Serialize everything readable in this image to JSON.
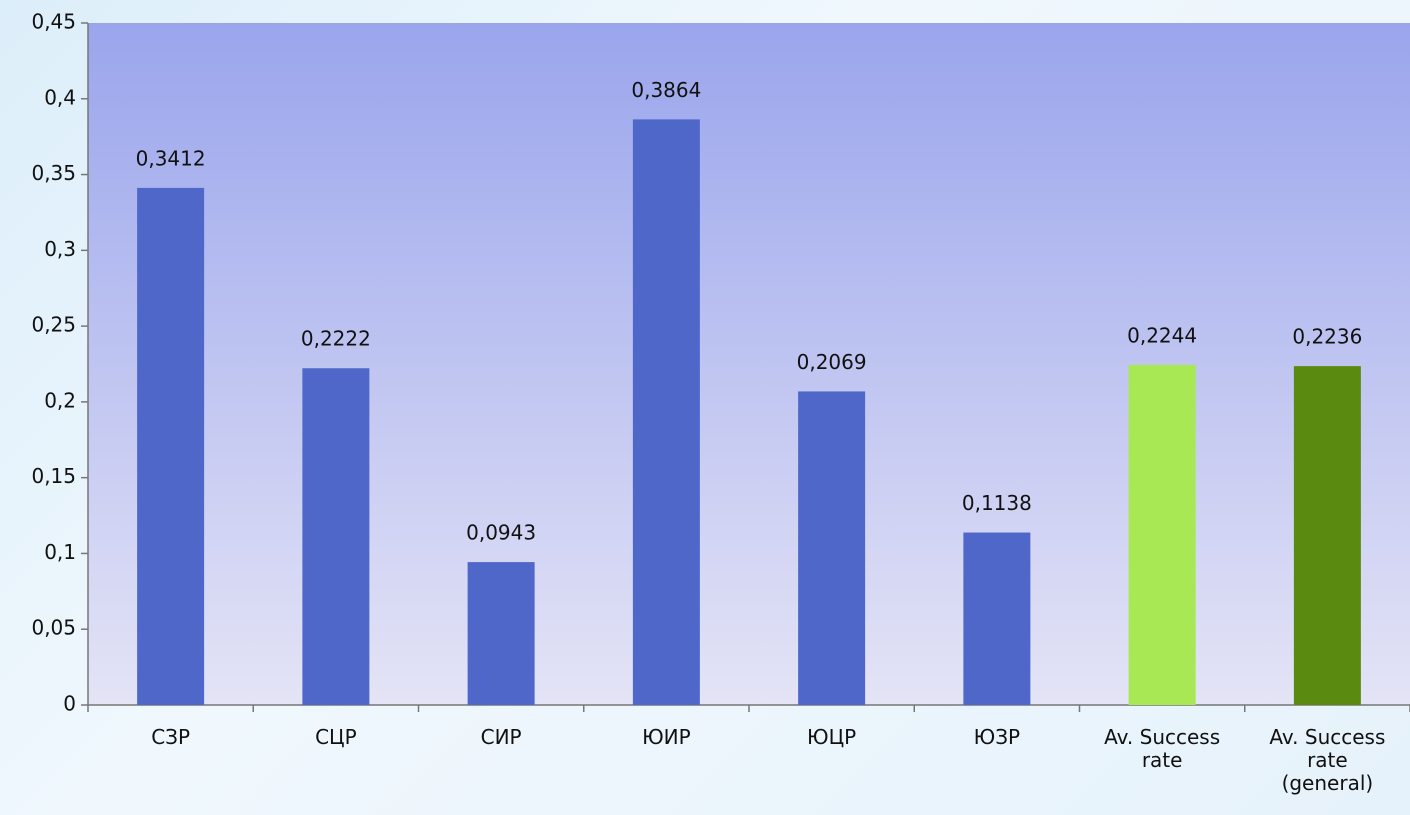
{
  "chart_data": {
    "type": "bar",
    "categories": [
      "СЗР",
      "СЦР",
      "СИР",
      "ЮИР",
      "ЮЦР",
      "ЮЗР",
      "Av. Success rate",
      "Av. Success rate (general)"
    ],
    "values": [
      0.3412,
      0.2222,
      0.0943,
      0.3864,
      0.2069,
      0.1138,
      0.2244,
      0.2236
    ],
    "value_labels": [
      "0,3412",
      "0,2222",
      "0,0943",
      "0,3864",
      "0,2069",
      "0,1138",
      "0,2244",
      "0,2236"
    ],
    "colors": [
      "#4f67c9",
      "#4f67c9",
      "#4f67c9",
      "#4f67c9",
      "#4f67c9",
      "#4f67c9",
      "#a8e854",
      "#5a8a10"
    ],
    "ylim": [
      0,
      0.45
    ],
    "yticks": [
      0,
      {
        "value": 0.05,
        "label": "0,05"
      },
      {
        "value": 0.1,
        "label": "0,1"
      },
      {
        "value": 0.15,
        "label": "0,15"
      },
      {
        "value": 0.2,
        "label": "0,2"
      },
      {
        "value": 0.25,
        "label": "0,25"
      },
      {
        "value": 0.3,
        "label": "0,3"
      },
      {
        "value": 0.35,
        "label": "0,35"
      },
      {
        "value": 0.4,
        "label": "0,4"
      },
      {
        "value": 0.45,
        "label": "0,45"
      }
    ],
    "grid": false
  }
}
